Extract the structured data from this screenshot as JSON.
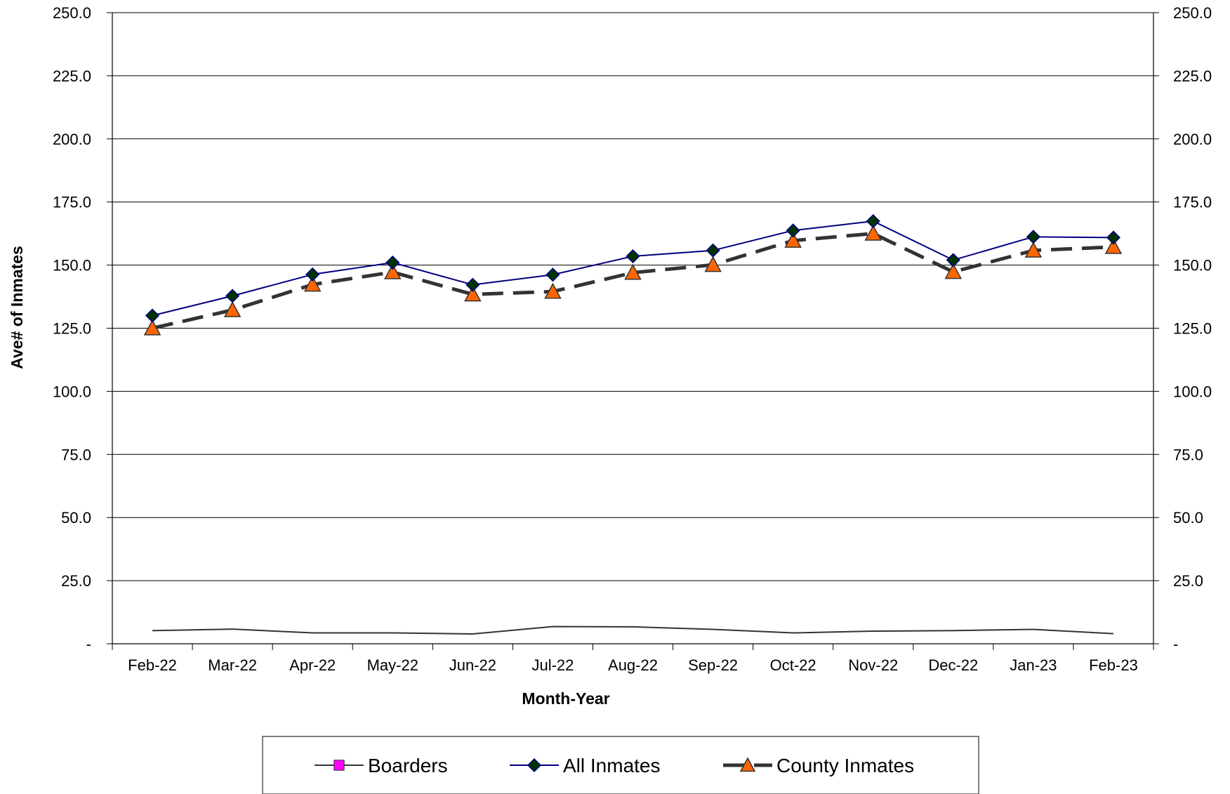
{
  "chart_data": {
    "type": "line",
    "title": "",
    "xlabel": "Month-Year",
    "ylabel": "Ave# of Inmates",
    "ylim": [
      0,
      250
    ],
    "y_ticks": [
      "-",
      "25.0",
      "50.0",
      "75.0",
      "100.0",
      "125.0",
      "150.0",
      "175.0",
      "200.0",
      "225.0",
      "250.0"
    ],
    "secondary_y_axis": true,
    "grid": "horizontal",
    "legend_position": "bottom",
    "categories": [
      "Feb-22",
      "Mar-22",
      "Apr-22",
      "May-22",
      "Jun-22",
      "Jul-22",
      "Aug-22",
      "Sep-22",
      "Oct-22",
      "Nov-22",
      "Dec-22",
      "Jan-23",
      "Feb-23"
    ],
    "series": [
      {
        "name": "Boarders",
        "values": [
          5.2,
          5.8,
          4.3,
          4.3,
          3.9,
          6.8,
          6.7,
          5.7,
          4.3,
          5.0,
          5.2,
          5.7,
          4.0
        ],
        "color": "#333333",
        "marker_color": "#ff00ff",
        "marker": "square",
        "line_style": "solid"
      },
      {
        "name": "All Inmates",
        "values": [
          130.0,
          137.8,
          146.3,
          151.0,
          142.2,
          146.2,
          153.5,
          155.8,
          163.7,
          167.4,
          152.0,
          161.2,
          160.9
        ],
        "color": "#00007f",
        "marker_color": "#003300",
        "marker": "diamond",
        "line_style": "solid"
      },
      {
        "name": "County Inmates",
        "values": [
          125.0,
          132.2,
          142.3,
          147.2,
          138.4,
          139.5,
          147.0,
          150.1,
          159.7,
          162.5,
          147.3,
          155.8,
          157.2
        ],
        "color": "#333333",
        "marker_color": "#ff6600",
        "marker": "triangle",
        "line_style": "dashed"
      }
    ]
  }
}
